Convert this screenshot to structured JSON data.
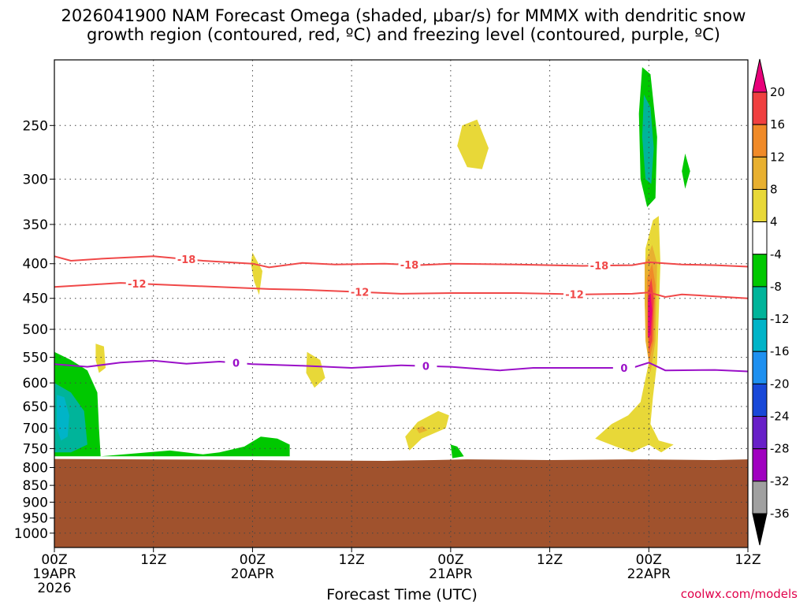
{
  "title_line1": "2026041900 NAM Forecast Omega (shaded, μbar/s) for MMMX with dendritic snow",
  "title_line2": "growth region (contoured, red, ºC) and freezing level (contoured, purple, ºC)",
  "xlabel": "Forecast Time (UTC)",
  "credit": "coolwx.com/models",
  "chart_data": {
    "type": "heatmap",
    "y_scale": "log-pressure",
    "y_inverted": true,
    "ylim": [
      1050,
      200
    ],
    "y_ticks": [
      250,
      300,
      350,
      400,
      450,
      500,
      550,
      600,
      650,
      700,
      750,
      800,
      850,
      900,
      950,
      1000
    ],
    "x_hours_range": [
      0,
      84
    ],
    "x_ticks": [
      {
        "hour": 0,
        "line1": "00Z",
        "line2": "19APR",
        "line3": "2026"
      },
      {
        "hour": 12,
        "line1": "12Z",
        "line2": "",
        "line3": ""
      },
      {
        "hour": 24,
        "line1": "00Z",
        "line2": "20APR",
        "line3": ""
      },
      {
        "hour": 36,
        "line1": "12Z",
        "line2": "",
        "line3": ""
      },
      {
        "hour": 48,
        "line1": "00Z",
        "line2": "21APR",
        "line3": ""
      },
      {
        "hour": 60,
        "line1": "12Z",
        "line2": "",
        "line3": ""
      },
      {
        "hour": 72,
        "line1": "00Z",
        "line2": "22APR",
        "line3": ""
      },
      {
        "hour": 84,
        "line1": "12Z",
        "line2": "",
        "line3": ""
      }
    ],
    "grid": true,
    "colorbar": {
      "labels": [
        "20",
        "16",
        "12",
        "8",
        "4",
        "-4",
        "-8",
        "-12",
        "-16",
        "-20",
        "-24",
        "-28",
        "-32",
        "-36"
      ],
      "colors": [
        "#e8007a",
        "#f04040",
        "#f08a28",
        "#e8b030",
        "#e8d838",
        "#ffffff",
        "#00c800",
        "#00b49a",
        "#00b4c8",
        "#1e90f0",
        "#1848d8",
        "#6820c8",
        "#a000c0",
        "#a0a0a0",
        "#000000"
      ]
    },
    "contours": [
      {
        "value": "-18",
        "color": "#f04848",
        "points": [
          [
            0,
            390
          ],
          [
            2,
            396
          ],
          [
            6,
            393
          ],
          [
            12,
            390
          ],
          [
            18,
            396
          ],
          [
            24,
            400
          ],
          [
            26,
            405
          ],
          [
            30,
            399
          ],
          [
            34,
            401
          ],
          [
            40,
            400
          ],
          [
            44,
            402
          ],
          [
            48,
            400
          ],
          [
            56,
            401
          ],
          [
            64,
            403
          ],
          [
            70,
            402
          ],
          [
            72,
            398
          ],
          [
            76,
            401
          ],
          [
            80,
            402
          ],
          [
            84,
            404
          ]
        ],
        "labels": [
          [
            16,
            "-18"
          ],
          [
            43,
            "-18"
          ],
          [
            66,
            "-18"
          ]
        ]
      },
      {
        "value": "-12",
        "color": "#f04848",
        "points": [
          [
            0,
            433
          ],
          [
            4,
            430
          ],
          [
            8,
            427
          ],
          [
            14,
            430
          ],
          [
            20,
            433
          ],
          [
            26,
            436
          ],
          [
            30,
            437
          ],
          [
            36,
            440
          ],
          [
            42,
            443
          ],
          [
            48,
            442
          ],
          [
            56,
            442
          ],
          [
            64,
            444
          ],
          [
            70,
            443
          ],
          [
            72,
            441
          ],
          [
            74,
            448
          ],
          [
            76,
            444
          ],
          [
            84,
            450
          ]
        ],
        "labels": [
          [
            10,
            "-12"
          ],
          [
            37,
            "-12"
          ],
          [
            63,
            "-12"
          ]
        ]
      },
      {
        "value": "0",
        "color": "#9a10c8",
        "points": [
          [
            0,
            563
          ],
          [
            4,
            568
          ],
          [
            8,
            560
          ],
          [
            12,
            556
          ],
          [
            16,
            562
          ],
          [
            20,
            558
          ],
          [
            24,
            563
          ],
          [
            30,
            566
          ],
          [
            36,
            570
          ],
          [
            42,
            565
          ],
          [
            48,
            568
          ],
          [
            54,
            575
          ],
          [
            58,
            570
          ],
          [
            64,
            570
          ],
          [
            70,
            570
          ],
          [
            72,
            560
          ],
          [
            74,
            575
          ],
          [
            80,
            574
          ],
          [
            84,
            577
          ]
        ],
        "labels": [
          [
            22,
            "0"
          ],
          [
            45,
            "0"
          ],
          [
            69,
            "0"
          ]
        ]
      }
    ],
    "omega_regions": [
      {
        "value": 4,
        "hours": [
          [
            49.4,
            250
          ],
          [
            51.2,
            245
          ],
          [
            52.6,
            270
          ],
          [
            51.8,
            290
          ],
          [
            50.0,
            288
          ],
          [
            48.8,
            268
          ]
        ]
      },
      {
        "value": 4,
        "hours": [
          [
            24,
            385
          ],
          [
            25.2,
            410
          ],
          [
            24.8,
            445
          ],
          [
            24.2,
            425
          ],
          [
            23.8,
            400
          ]
        ]
      },
      {
        "value": 4,
        "hours": [
          [
            30.6,
            540
          ],
          [
            32.2,
            555
          ],
          [
            32.8,
            590
          ],
          [
            31.5,
            610
          ],
          [
            30.5,
            580
          ]
        ]
      },
      {
        "value": 4,
        "hours": [
          [
            5.0,
            525
          ],
          [
            6.0,
            530
          ],
          [
            6.2,
            570
          ],
          [
            5.4,
            580
          ],
          [
            5.0,
            555
          ]
        ]
      },
      {
        "value": 4,
        "hours": [
          [
            42.5,
            720
          ],
          [
            44,
            685
          ],
          [
            46.5,
            660
          ],
          [
            47.8,
            670
          ],
          [
            47.4,
            700
          ],
          [
            44.5,
            725
          ],
          [
            43,
            755
          ]
        ]
      },
      {
        "value": 8,
        "hours": [
          [
            43.8,
            700
          ],
          [
            44.6,
            695
          ],
          [
            45.2,
            705
          ],
          [
            44.2,
            712
          ]
        ]
      },
      {
        "value": 4,
        "hours": [
          [
            65.5,
            725
          ],
          [
            67.5,
            690
          ],
          [
            69.5,
            670
          ],
          [
            71.0,
            640
          ],
          [
            72.0,
            560
          ],
          [
            71.5,
            460
          ],
          [
            71.6,
            380
          ],
          [
            72.5,
            345
          ],
          [
            73.2,
            340
          ],
          [
            73.4,
            400
          ],
          [
            73.0,
            560
          ],
          [
            72.5,
            630
          ],
          [
            72.2,
            690
          ],
          [
            73.2,
            730
          ],
          [
            75.0,
            740
          ],
          [
            73.5,
            760
          ],
          [
            72,
            740
          ],
          [
            70,
            760
          ],
          [
            68,
            745
          ]
        ]
      },
      {
        "value": 8,
        "hours": [
          [
            71.5,
            400
          ],
          [
            72.4,
            375
          ],
          [
            73.0,
            400
          ],
          [
            72.8,
            520
          ],
          [
            72.2,
            580
          ],
          [
            71.6,
            520
          ],
          [
            71.5,
            450
          ]
        ]
      },
      {
        "value": 12,
        "hours": [
          [
            71.8,
            420
          ],
          [
            72.4,
            400
          ],
          [
            72.8,
            430
          ],
          [
            72.6,
            520
          ],
          [
            72.0,
            560
          ],
          [
            71.8,
            500
          ]
        ]
      },
      {
        "value": 16,
        "hours": [
          [
            71.9,
            440
          ],
          [
            72.3,
            420
          ],
          [
            72.6,
            450
          ],
          [
            72.4,
            520
          ],
          [
            72.0,
            540
          ]
        ]
      },
      {
        "value": 20,
        "hours": [
          [
            71.9,
            450
          ],
          [
            72.2,
            440
          ],
          [
            72.4,
            470
          ],
          [
            72.2,
            510
          ],
          [
            71.9,
            515
          ]
        ]
      },
      {
        "value": -4,
        "hours": [
          [
            71.2,
            205
          ],
          [
            72.2,
            210
          ],
          [
            73.0,
            260
          ],
          [
            72.8,
            320
          ],
          [
            71.8,
            330
          ],
          [
            71.0,
            300
          ],
          [
            70.8,
            240
          ]
        ]
      },
      {
        "value": -8,
        "hours": [
          [
            71.4,
            225
          ],
          [
            72.2,
            235
          ],
          [
            72.6,
            270
          ],
          [
            72.3,
            305
          ],
          [
            71.6,
            300
          ],
          [
            71.2,
            260
          ]
        ]
      },
      {
        "value": -4,
        "hours": [
          [
            76.4,
            275
          ],
          [
            77.0,
            292
          ],
          [
            76.4,
            310
          ],
          [
            76.0,
            292
          ]
        ]
      },
      {
        "value": -4,
        "hours": [
          [
            0,
            540
          ],
          [
            2,
            555
          ],
          [
            4,
            575
          ],
          [
            5.2,
            620
          ],
          [
            5.4,
            700
          ],
          [
            5.6,
            770
          ],
          [
            14,
            755
          ],
          [
            18,
            765
          ],
          [
            20,
            760
          ],
          [
            23,
            745
          ],
          [
            25,
            720
          ],
          [
            27,
            725
          ],
          [
            28.5,
            740
          ],
          [
            28.5,
            770
          ],
          [
            0,
            770
          ]
        ]
      },
      {
        "value": -8,
        "hours": [
          [
            0,
            600
          ],
          [
            2,
            620
          ],
          [
            3.6,
            660
          ],
          [
            4.0,
            740
          ],
          [
            2.0,
            760
          ],
          [
            0,
            760
          ]
        ]
      },
      {
        "value": -12,
        "hours": [
          [
            0.3,
            625
          ],
          [
            1.2,
            630
          ],
          [
            1.8,
            670
          ],
          [
            1.6,
            720
          ],
          [
            0.8,
            730
          ],
          [
            0.3,
            700
          ]
        ]
      },
      {
        "value": -4,
        "hours": [
          [
            48.0,
            740
          ],
          [
            48.8,
            745
          ],
          [
            49.6,
            770
          ],
          [
            48.2,
            775
          ]
        ]
      }
    ]
  }
}
